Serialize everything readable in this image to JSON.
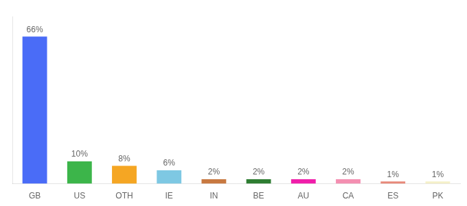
{
  "chart_data": {
    "type": "bar",
    "categories": [
      "GB",
      "US",
      "OTH",
      "IE",
      "IN",
      "BE",
      "AU",
      "CA",
      "ES",
      "PK"
    ],
    "values": [
      66,
      10,
      8,
      6,
      2,
      2,
      2,
      2,
      1,
      1
    ],
    "value_labels": [
      "66%",
      "10%",
      "8%",
      "6%",
      "2%",
      "2%",
      "2%",
      "2%",
      "1%",
      "1%"
    ],
    "colors": [
      "#4a6cf7",
      "#3cb54a",
      "#f5a623",
      "#7ec8e3",
      "#c87941",
      "#2e7d32",
      "#f01eaa",
      "#f48fb1",
      "#e8897a",
      "#f5f0c8"
    ],
    "ylim": [
      0,
      75
    ],
    "data_labels": true,
    "tick_labels": "x",
    "grid": false
  }
}
